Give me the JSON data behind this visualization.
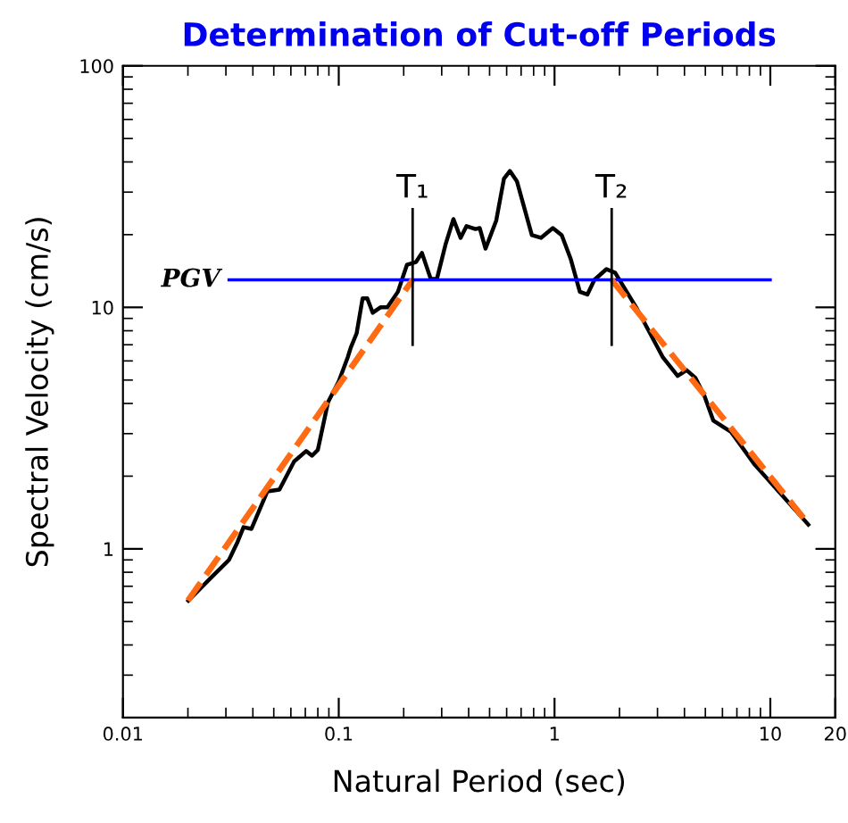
{
  "chart_data": {
    "type": "line",
    "title": "Determination of Cut-off Periods",
    "xlabel": "Natural Period (sec)",
    "ylabel": "Spectral Velocity (cm/s)",
    "log": "xy",
    "xlim": [
      0.01,
      20
    ],
    "ylim": [
      0.2,
      100
    ],
    "xticks": [
      0.01,
      0.1,
      1,
      10,
      20
    ],
    "yticks": [
      1,
      10,
      100
    ],
    "grid": false,
    "legend": false,
    "marker": "none",
    "series": [
      {
        "color": "#000000",
        "line_style": "solid",
        "x": [
          0.0201,
          0.0256,
          0.031,
          0.034,
          0.0362,
          0.0394,
          0.0467,
          0.0531,
          0.0621,
          0.0706,
          0.0752,
          0.08,
          0.0892,
          0.1,
          0.11,
          0.1136,
          0.121,
          0.129,
          0.1356,
          0.1436,
          0.156,
          0.168,
          0.188,
          0.207,
          0.228,
          0.243,
          0.267,
          0.285,
          0.313,
          0.34,
          0.367,
          0.391,
          0.43,
          0.45,
          0.479,
          0.537,
          0.583,
          0.621,
          0.67,
          0.785,
          0.865,
          0.982,
          1.08,
          1.19,
          1.31,
          1.42,
          1.53,
          1.74,
          1.91,
          2.39,
          3.18,
          3.72,
          4.09,
          4.5,
          4.95,
          5.44,
          6.58,
          8.47,
          11.6,
          15.0
        ],
        "values": [
          0.61,
          0.76,
          0.9,
          1.07,
          1.23,
          1.21,
          1.73,
          1.76,
          2.3,
          2.54,
          2.43,
          2.57,
          4.05,
          4.94,
          6.2,
          6.8,
          7.8,
          10.9,
          10.9,
          9.5,
          10.0,
          10.0,
          11.6,
          15.0,
          15.4,
          16.8,
          13.1,
          13.1,
          18.3,
          23.2,
          19.4,
          21.7,
          21.1,
          21.3,
          17.5,
          22.9,
          34.1,
          36.7,
          33.2,
          19.9,
          19.4,
          21.3,
          19.9,
          15.8,
          11.6,
          11.3,
          13.0,
          14.4,
          13.9,
          10.0,
          6.2,
          5.2,
          5.5,
          5.1,
          4.3,
          3.4,
          3.05,
          2.23,
          1.63,
          1.26
        ]
      },
      {
        "name": "PGV",
        "color": "#0000ff",
        "line_style": "solid",
        "x": [
          0.031,
          10
        ],
        "values": [
          13,
          13
        ]
      },
      {
        "color": "#ff6a13",
        "line_style": "dashed",
        "x": [
          0.02,
          0.22
        ],
        "values": [
          0.61,
          13
        ]
      },
      {
        "color": "#ff6a13",
        "line_style": "dashed",
        "x": [
          1.84,
          15.2
        ],
        "values": [
          13,
          1.25
        ]
      },
      {
        "color": "#000000",
        "line_style": "solid",
        "x": [
          0.22,
          0.22
        ],
        "values": [
          7.0,
          25.5
        ]
      },
      {
        "color": "#000000",
        "line_style": "solid",
        "x": [
          1.84,
          1.84
        ],
        "values": [
          7.0,
          25.5
        ]
      }
    ],
    "annotations": [
      {
        "text": "T₁",
        "x": 0.22,
        "y": 25.5
      },
      {
        "text": "T₂",
        "x": 1.84,
        "y": 25.5
      }
    ]
  }
}
